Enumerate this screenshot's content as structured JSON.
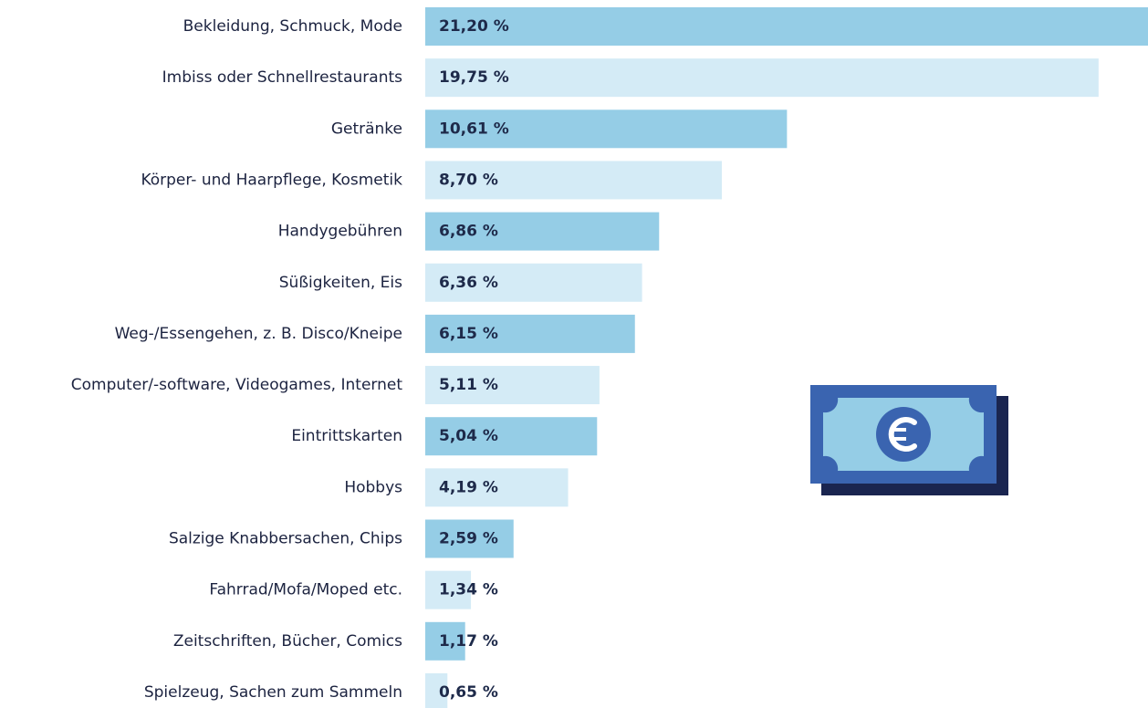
{
  "chart_data": {
    "type": "bar",
    "orientation": "horizontal",
    "categories": [
      "Bekleidung, Schmuck, Mode",
      "Imbiss oder Schnellrestaurants",
      "Getränke",
      "Körper- und Haarpflege, Kosmetik",
      "Handygebühren",
      "Süßigkeiten, Eis",
      "Weg-/Essengehen, z. B. Disco/Kneipe",
      "Computer/-software, Videogames, Internet",
      "Eintrittskarten",
      "Hobbys",
      "Salzige Knabbersachen, Chips",
      "Fahrrad/Mofa/Moped etc.",
      "Zeitschriften, Bücher, Comics",
      "Spielzeug, Sachen zum Sammeln"
    ],
    "values": [
      21.2,
      19.75,
      10.61,
      8.7,
      6.86,
      6.36,
      6.15,
      5.11,
      5.04,
      4.19,
      2.59,
      1.34,
      1.17,
      0.65
    ],
    "value_labels": [
      "21,20 %",
      "19,75 %",
      "10,61 %",
      "8,70 %",
      "6,86 %",
      "6,36 %",
      "6,15 %",
      "5,11 %",
      "5,04 %",
      "4,19 %",
      "2,59 %",
      "1,34 %",
      "1,17 %",
      "0,65 %"
    ],
    "colors": [
      "#95cde6",
      "#d4ebf6",
      "#95cde6",
      "#d4ebf6",
      "#95cde6",
      "#d4ebf6",
      "#95cde6",
      "#d4ebf6",
      "#95cde6",
      "#d4ebf6",
      "#95cde6",
      "#d4ebf6",
      "#95cde6",
      "#d4ebf6"
    ]
  }
}
